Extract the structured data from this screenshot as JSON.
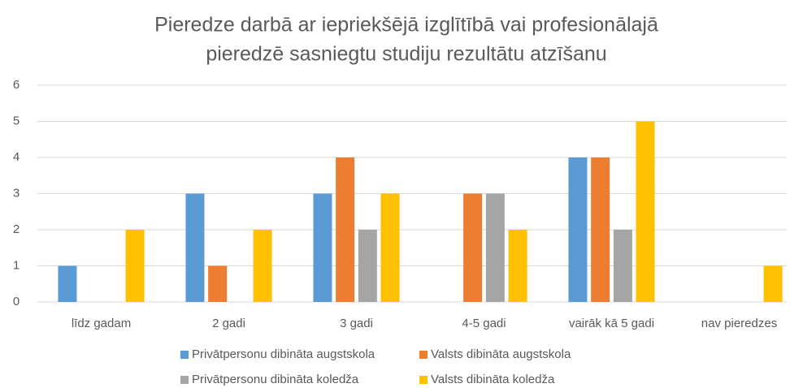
{
  "chart_data": {
    "type": "bar",
    "title": [
      "Pieredze darbā ar iepriekšējā izglītībā vai profesionālajā",
      "pieredzē sasniegtu studiju rezultātu atzīšanu"
    ],
    "categories": [
      "līdz gadam",
      "2 gadi",
      "3 gadi",
      "4-5 gadi",
      "vairāk kā 5 gadi",
      "nav pieredzes"
    ],
    "series": [
      {
        "name": "Privātpersonu dibināta augstskola",
        "color": "#5b9bd5",
        "values": [
          1,
          3,
          3,
          0,
          4,
          0
        ]
      },
      {
        "name": "Valsts dibināta augstskola",
        "color": "#ed7d31",
        "values": [
          0,
          1,
          4,
          3,
          4,
          0
        ]
      },
      {
        "name": "Privātpersonu dibināta koledža",
        "color": "#a5a5a5",
        "values": [
          0,
          0,
          2,
          3,
          2,
          0
        ]
      },
      {
        "name": "Valsts dibināta koledža",
        "color": "#ffc000",
        "values": [
          2,
          2,
          3,
          2,
          5,
          1
        ]
      }
    ],
    "ylim": [
      0,
      6
    ],
    "yticks": [
      0,
      1,
      2,
      3,
      4,
      5,
      6
    ],
    "grid": true,
    "legend": "bottom"
  }
}
